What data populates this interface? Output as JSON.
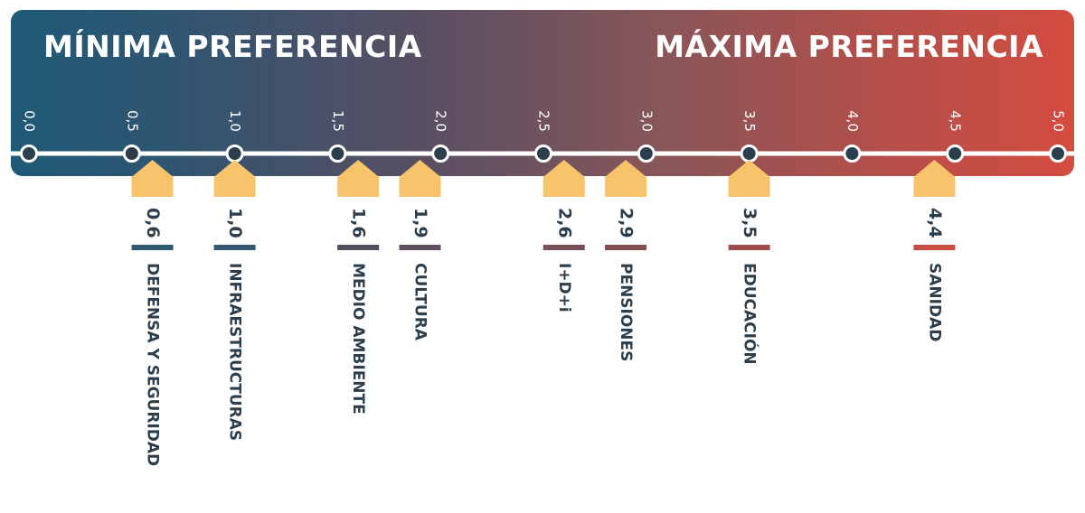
{
  "header": {
    "left": "MÍNIMA PREFERENCIA",
    "right": "MÁXIMA PREFERENCIA"
  },
  "colors": {
    "gradient_start": "#1f5a76",
    "gradient_end": "#d44c3f",
    "marker": "#f7c46b",
    "dot": "#2c3e4c",
    "axis": "#ffffff",
    "text": "#2c3e4c"
  },
  "chart_data": {
    "type": "scatter",
    "xlim": [
      0,
      5
    ],
    "ticks": [
      0.0,
      0.5,
      1.0,
      1.5,
      2.0,
      2.5,
      3.0,
      3.5,
      4.0,
      4.5,
      5.0
    ],
    "tick_labels": [
      "0,0",
      "0,5",
      "1,0",
      "1,5",
      "2,0",
      "2,5",
      "3,0",
      "3,5",
      "4,0",
      "4,5",
      "5,0"
    ],
    "points": [
      {
        "category": "DEFENSA Y SEGURIDAD",
        "value": 0.6,
        "label": "0,6",
        "color": "#2b5a72"
      },
      {
        "category": "INFRAESTRUCTURAS",
        "value": 1.0,
        "label": "1,0",
        "color": "#335a72"
      },
      {
        "category": "MEDIO AMBIENTE",
        "value": 1.6,
        "label": "1,6",
        "color": "#4f4f60"
      },
      {
        "category": "CULTURA",
        "value": 1.9,
        "label": "1,9",
        "color": "#5f4f5e"
      },
      {
        "category": "I+D+i",
        "value": 2.6,
        "label": "2,6",
        "color": "#7a4e55"
      },
      {
        "category": "PENSIONES",
        "value": 2.9,
        "label": "2,9",
        "color": "#874e52"
      },
      {
        "category": "EDUCACIÓN",
        "value": 3.5,
        "label": "3,5",
        "color": "#9e4c4b"
      },
      {
        "category": "SANIDAD",
        "value": 4.4,
        "label": "4,4",
        "color": "#c84a40"
      }
    ],
    "grid": false
  }
}
